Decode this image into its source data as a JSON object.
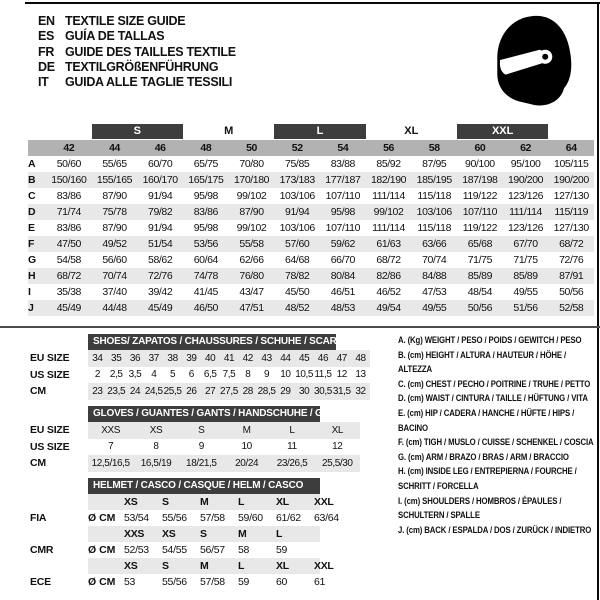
{
  "header": {
    "languages": [
      {
        "code": "EN",
        "title": "TEXTILE SIZE GUIDE"
      },
      {
        "code": "ES",
        "title": "GUÍA DE TALLAS"
      },
      {
        "code": "FR",
        "title": "GUIDE DES TAILLES TEXTILE"
      },
      {
        "code": "DE",
        "title": "TEXTILGRÖßENFÜHRUNG"
      },
      {
        "code": "IT",
        "title": "GUIDA ALLE TAGLIE TESSILI"
      }
    ],
    "icon": "full-face-helmet-icon"
  },
  "colors": {
    "dark_bar": "#3d3d3d",
    "size_band": "#b2b2b2",
    "row_stripe": "#e8e8e8"
  },
  "textile": {
    "groups": [
      {
        "label": "",
        "span": 1,
        "dark": false
      },
      {
        "label": "S",
        "span": 2,
        "dark": true
      },
      {
        "label": "M",
        "span": 2,
        "dark": false
      },
      {
        "label": "L",
        "span": 2,
        "dark": true
      },
      {
        "label": "XL",
        "span": 2,
        "dark": false
      },
      {
        "label": "XXL",
        "span": 2,
        "dark": true
      },
      {
        "label": "",
        "span": 1,
        "dark": false
      }
    ],
    "sizes": [
      "42",
      "44",
      "46",
      "48",
      "50",
      "52",
      "54",
      "56",
      "58",
      "60",
      "62",
      "64"
    ],
    "rows": [
      {
        "letter": "A",
        "values": [
          "50/60",
          "55/65",
          "60/70",
          "65/75",
          "70/80",
          "75/85",
          "83/88",
          "85/92",
          "87/95",
          "90/100",
          "95/100",
          "105/115"
        ]
      },
      {
        "letter": "B",
        "values": [
          "150/160",
          "155/165",
          "160/170",
          "165/175",
          "170/180",
          "173/183",
          "177/187",
          "182/190",
          "185/195",
          "187/198",
          "190/200",
          "190/200"
        ]
      },
      {
        "letter": "C",
        "values": [
          "83/86",
          "87/90",
          "91/94",
          "95/98",
          "99/102",
          "103/106",
          "107/110",
          "111/114",
          "115/118",
          "119/122",
          "123/126",
          "127/130"
        ]
      },
      {
        "letter": "D",
        "values": [
          "71/74",
          "75/78",
          "79/82",
          "83/86",
          "87/90",
          "91/94",
          "95/98",
          "99/102",
          "103/106",
          "107/110",
          "111/114",
          "115/119"
        ]
      },
      {
        "letter": "E",
        "values": [
          "83/86",
          "87/90",
          "91/94",
          "95/98",
          "99/102",
          "103/106",
          "107/110",
          "111/114",
          "115/118",
          "119/122",
          "123/126",
          "127/130"
        ]
      },
      {
        "letter": "F",
        "values": [
          "47/50",
          "49/52",
          "51/54",
          "53/56",
          "55/58",
          "57/60",
          "59/62",
          "61/63",
          "63/66",
          "65/68",
          "67/70",
          "68/72"
        ]
      },
      {
        "letter": "G",
        "values": [
          "54/58",
          "56/60",
          "58/62",
          "60/64",
          "62/66",
          "64/68",
          "66/70",
          "68/72",
          "70/74",
          "71/75",
          "71/75",
          "72/76"
        ]
      },
      {
        "letter": "H",
        "values": [
          "68/72",
          "70/74",
          "72/76",
          "74/78",
          "76/80",
          "78/82",
          "80/84",
          "82/86",
          "84/88",
          "85/89",
          "85/89",
          "87/91"
        ]
      },
      {
        "letter": "I",
        "values": [
          "35/38",
          "37/40",
          "39/42",
          "41/45",
          "43/47",
          "45/50",
          "46/51",
          "46/52",
          "47/53",
          "48/54",
          "49/55",
          "50/56"
        ]
      },
      {
        "letter": "J",
        "values": [
          "45/49",
          "44/48",
          "45/49",
          "46/50",
          "47/51",
          "48/52",
          "48/53",
          "49/54",
          "49/55",
          "50/56",
          "51/56",
          "52/58"
        ]
      }
    ]
  },
  "shoes": {
    "title": "SHOES/ ZAPATOS / CHAUSSURES / SCHUHE / SCARPE",
    "rows": [
      {
        "label": "EU SIZE",
        "shaded": true,
        "values": [
          "34",
          "35",
          "36",
          "37",
          "38",
          "39",
          "40",
          "41",
          "42",
          "43",
          "44",
          "45",
          "46",
          "47",
          "48"
        ]
      },
      {
        "label": "US SIZE",
        "shaded": false,
        "values": [
          "2",
          "2,5",
          "3,5",
          "4",
          "5",
          "6",
          "6,5",
          "7,5",
          "8",
          "9",
          "10",
          "10,5",
          "11,5",
          "12",
          "13"
        ]
      },
      {
        "label": "CM",
        "shaded": true,
        "values": [
          "23",
          "23,5",
          "24",
          "24,5",
          "25,5",
          "26",
          "27",
          "27,5",
          "28",
          "28,5",
          "29",
          "30",
          "30,5",
          "31,5",
          "32"
        ]
      }
    ]
  },
  "gloves": {
    "title": "GLOVES / GUANTES / GANTS / HANDSCHUHE / GUANTI",
    "rows": [
      {
        "label": "EU SIZE",
        "shaded": true,
        "values": [
          "XXS",
          "XS",
          "S",
          "M",
          "L",
          "XL"
        ]
      },
      {
        "label": "US SIZE",
        "shaded": false,
        "values": [
          "7",
          "8",
          "9",
          "10",
          "11",
          "12"
        ]
      },
      {
        "label": "CM",
        "shaded": true,
        "values": [
          "12,5/16,5",
          "16,5/19",
          "18/21,5",
          "20/24",
          "23/26,5",
          "25,5/30"
        ]
      }
    ]
  },
  "helmet": {
    "title": "HELMET / CASCO / CASQUE / HELM / CASCO",
    "unit": "Ø CM",
    "sections": [
      {
        "label": "FIA",
        "sizes": [
          "XS",
          "S",
          "M",
          "L",
          "XL",
          "XXL"
        ],
        "values": [
          "53/54",
          "55/56",
          "57/58",
          "59/60",
          "61/62",
          "63/64"
        ]
      },
      {
        "label": "CMR",
        "sizes": [
          "XXS",
          "XS",
          "S",
          "M",
          "L"
        ],
        "values": [
          "52/53",
          "54/55",
          "56/57",
          "58",
          "59"
        ]
      },
      {
        "label": "ECE",
        "sizes": [
          "XS",
          "S",
          "M",
          "L",
          "XL",
          "XXL"
        ],
        "values": [
          "53",
          "55/56",
          "57/58",
          "59",
          "60",
          "61"
        ]
      }
    ]
  },
  "legend": {
    "items": [
      "A. (Kg) WEIGHT / PESO / POIDS / GEWITCH / PESO",
      "B. (cm) HEIGHT / ALTURA / HAUTEUR / HÖHE / ALTEZZA",
      "C. (cm) CHEST / PECHO / POITRINE / TRUHE / PETTO",
      "D. (cm) WAIST / CINTURA / TAILLE / HÜFTUNG / VITA",
      "E. (cm) HIP / CADERA / HANCHE / HÜFTE / HIPS / BACINO",
      "F. (cm) TIGH / MUSLO / CUISSE / SCHENKEL / COSCIA",
      "G. (cm) ARM / BRAZO / BRAS / ARM / BRACCIO",
      "H. (cm) INSIDE LEG / ENTREPIERNA / FOURCHE / SCHRITT / FORCELLA",
      "I. (cm) SHOULDERS / HOMBROS / ÉPAULES / SCHULTERN / SPALLE",
      "J. (cm) BACK / ESPALDA / DOS / ZURÜCK / INDIETRO"
    ]
  }
}
